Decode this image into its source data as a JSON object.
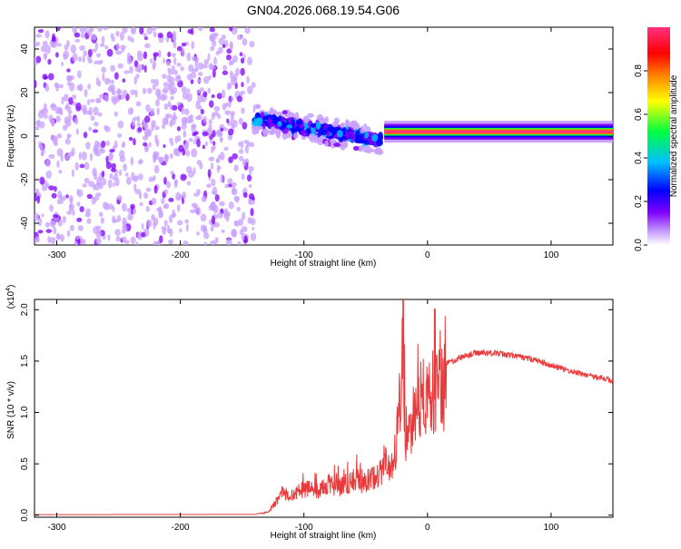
{
  "title": "GN04.2026.068.19.54.G06",
  "chart_data": [
    {
      "type": "heatmap",
      "xlabel": "Height of straight line (km)",
      "ylabel": "Frequency (Hz)",
      "xlim": [
        -318,
        150
      ],
      "ylim": [
        -50,
        50
      ],
      "xticks": [
        -300,
        -200,
        -100,
        0,
        100
      ],
      "yticks": [
        -40,
        -20,
        0,
        20,
        40
      ],
      "regions": [
        {
          "x": [
            -318,
            -140
          ],
          "y": [
            -50,
            50
          ],
          "amplitude": 0.12,
          "pattern": "noise"
        },
        {
          "x": [
            -140,
            -38
          ],
          "y_center_start": 8,
          "y_center_end": -2,
          "amplitude": 0.3,
          "pattern": "diffuse band"
        },
        {
          "x": [
            -35,
            150
          ],
          "y_center": 2,
          "half_width": 2,
          "amplitude": 0.95,
          "pattern": "narrow line"
        }
      ],
      "colorbar": {
        "label": "Normalized spectral amplitude",
        "ticks": [
          0.0,
          0.2,
          0.4,
          0.6,
          0.8
        ],
        "range": [
          0,
          1
        ],
        "colors": [
          "#ffffff",
          "#c8a0ff",
          "#8000ff",
          "#0000ff",
          "#00c0ff",
          "#00ff40",
          "#ffff00",
          "#ff8000",
          "#ff0000",
          "#ff3080"
        ]
      }
    },
    {
      "type": "line",
      "xlabel": "Height of straight line (km)",
      "ylabel": "SNR (10 * v/v)",
      "multiplier": "(x10",
      "multiplier_exp": "4",
      "multiplier_close": ")",
      "xlim": [
        -318,
        150
      ],
      "ylim": [
        -0.02,
        2.1
      ],
      "xticks": [
        -300,
        -200,
        -100,
        0,
        100
      ],
      "yticks": [
        "0.0",
        "0.5",
        "1.0",
        "1.5",
        "2.0"
      ],
      "color": "#e83a3a",
      "points": [
        [
          -318,
          0.005
        ],
        [
          -250,
          0.006
        ],
        [
          -180,
          0.007
        ],
        [
          -140,
          0.008
        ],
        [
          -130,
          0.03
        ],
        [
          -125,
          0.1
        ],
        [
          -118,
          0.25
        ],
        [
          -110,
          0.22
        ],
        [
          -100,
          0.3
        ],
        [
          -90,
          0.28
        ],
        [
          -80,
          0.35
        ],
        [
          -70,
          0.32
        ],
        [
          -60,
          0.4
        ],
        [
          -50,
          0.38
        ],
        [
          -40,
          0.45
        ],
        [
          -35,
          0.6
        ],
        [
          -30,
          0.5
        ],
        [
          -25,
          0.85
        ],
        [
          -22,
          1.4
        ],
        [
          -20,
          2.1
        ],
        [
          -18,
          0.9
        ],
        [
          -15,
          1.0
        ],
        [
          -10,
          1.2
        ],
        [
          -5,
          1.35
        ],
        [
          0,
          1.3
        ],
        [
          5,
          1.4
        ],
        [
          10,
          1.45
        ],
        [
          15,
          1.48
        ],
        [
          20,
          1.5
        ],
        [
          30,
          1.55
        ],
        [
          40,
          1.58
        ],
        [
          50,
          1.58
        ],
        [
          60,
          1.57
        ],
        [
          70,
          1.55
        ],
        [
          80,
          1.53
        ],
        [
          90,
          1.5
        ],
        [
          100,
          1.46
        ],
        [
          110,
          1.42
        ],
        [
          120,
          1.39
        ],
        [
          130,
          1.36
        ],
        [
          140,
          1.34
        ],
        [
          150,
          1.31
        ]
      ]
    }
  ]
}
